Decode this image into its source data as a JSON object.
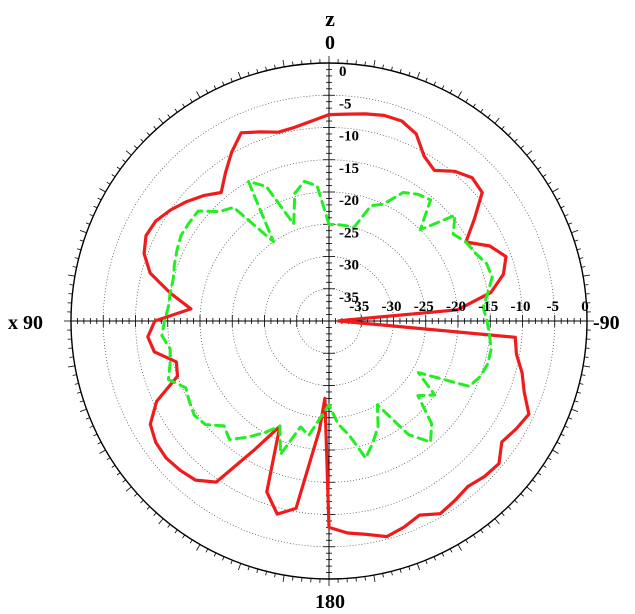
{
  "chart_data": {
    "type": "polar",
    "axis_labels": {
      "top_letter": "z",
      "top": "0",
      "left": "x 90",
      "right": "-90",
      "bottom": "180"
    },
    "radial_ticks": [
      "-35",
      "-30",
      "-25",
      "-20",
      "-15",
      "-10",
      "-5",
      "0"
    ],
    "radial_tick_values": [
      -35,
      -30,
      -25,
      -20,
      -15,
      -10,
      -5,
      0
    ],
    "rlim": [
      -40,
      0
    ],
    "angle_ticks_deg": [
      0,
      90,
      180,
      -90
    ],
    "grid": true,
    "series": [
      {
        "color": "#ee1c1c",
        "style": "solid",
        "theta": [
          0,
          10,
          15,
          20,
          25,
          30,
          35,
          40,
          45,
          50,
          55,
          60,
          65,
          70,
          75,
          80,
          85,
          90,
          95,
          100,
          105,
          110,
          115,
          120,
          125,
          130,
          135,
          140,
          145,
          150,
          155,
          160,
          165,
          170,
          175,
          177,
          180,
          185,
          190,
          195,
          200,
          205,
          210,
          215,
          220,
          225,
          230,
          235,
          240,
          245,
          250,
          255,
          260,
          265,
          270,
          272,
          275,
          280,
          285,
          290,
          295,
          300,
          305,
          310,
          315,
          320,
          325,
          330,
          335,
          340,
          345,
          350,
          355,
          360
        ],
        "values": [
          -8.0,
          -9.5,
          -9.7,
          -8.8,
          -7.8,
          -9.8,
          -12.0,
          -14.0,
          -12.5,
          -11.2,
          -10.0,
          -9.0,
          -8.7,
          -9.5,
          -11.3,
          -15.0,
          -18.5,
          -13.0,
          -11.8,
          -12.5,
          -15.5,
          -15.0,
          -10.5,
          -8.0,
          -7.2,
          -7.0,
          -7.3,
          -7.8,
          -9.5,
          -17.0,
          -22.0,
          -11.8,
          -9.0,
          -10.5,
          -23.0,
          -28.0,
          -8.0,
          -7.0,
          -6.4,
          -5.4,
          -6.0,
          -6.8,
          -5.5,
          -6.0,
          -6.5,
          -5.9,
          -5.6,
          -7.3,
          -6.5,
          -5.8,
          -7.8,
          -9.0,
          -10.5,
          -11.0,
          -38.5,
          -38.0,
          -20.0,
          -14.5,
          -12.0,
          -10.8,
          -12.5,
          -15.5,
          -12.5,
          -9.0,
          -8.6,
          -9.7,
          -11.5,
          -10.5,
          -8.0,
          -7.0,
          -7.0,
          -7.4,
          -7.8,
          -8.0
        ]
      },
      {
        "color": "#22ee22",
        "style": "dashed",
        "theta": [
          0,
          5,
          10,
          15,
          20,
          25,
          30,
          35,
          40,
          45,
          50,
          55,
          60,
          65,
          70,
          75,
          80,
          85,
          90,
          95,
          100,
          105,
          110,
          115,
          120,
          125,
          130,
          135,
          140,
          145,
          150,
          155,
          160,
          165,
          170,
          175,
          180,
          185,
          190,
          195,
          200,
          205,
          210,
          215,
          220,
          225,
          230,
          235,
          240,
          245,
          250,
          255,
          260,
          265,
          270,
          275,
          280,
          285,
          290,
          295,
          300,
          305,
          310,
          315,
          320,
          325,
          330,
          335,
          340,
          345,
          350,
          355,
          360
        ],
        "values": [
          -25.0,
          -19.0,
          -18.0,
          -19.5,
          -24.0,
          -17.0,
          -15.0,
          -25.0,
          -17.0,
          -16.0,
          -13.5,
          -13.5,
          -13.5,
          -14.0,
          -14.5,
          -15.0,
          -15.0,
          -15.0,
          -14.5,
          -14.0,
          -15.0,
          -14.5,
          -13.5,
          -15.5,
          -15.0,
          -14.5,
          -15.0,
          -17.0,
          -16.0,
          -18.0,
          -20.0,
          -22.0,
          -18.0,
          -23.0,
          -22.0,
          -25.0,
          -27.0,
          -24.0,
          -22.0,
          -18.0,
          -20.0,
          -22.0,
          -25.0,
          -18.5,
          -15.5,
          -17.5,
          -22.0,
          -20.0,
          -24.0,
          -16.0,
          -15.0,
          -14.5,
          -14.5,
          -15.0,
          -15.5,
          -16.0,
          -15.0,
          -13.8,
          -14.0,
          -15.0,
          -15.5,
          -16.5,
          -14.5,
          -20.0,
          -15.5,
          -16.0,
          -17.0,
          -20.0,
          -21.0,
          -25.0,
          -25.0,
          -25.0,
          -25.0
        ]
      }
    ]
  }
}
